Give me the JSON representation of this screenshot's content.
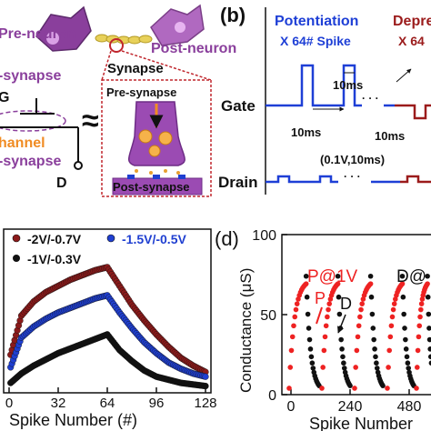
{
  "panel_a": {
    "pre_neuron": "Pre-neuron",
    "post_neuron": "Post-neuron",
    "synapse": "Synapse",
    "pre_synapse_side": "-synapse",
    "gate_label": "G",
    "channel_label": "hannel",
    "channel_synapse": "-synapse",
    "approx": "≈",
    "drain_label": "D",
    "pre_synapse": "Pre-synapse",
    "post_synapse": "Post-synapse"
  },
  "panel_b": {
    "label": "(b)",
    "potentiation": "Potentiation",
    "potentiation_count": "X 64# Spike",
    "depression": "Depre",
    "depression_count": "X 64",
    "gate": "Gate",
    "drain": "Drain",
    "width_top": "10ms",
    "gap_bottom": "10ms",
    "depress_width": "10ms",
    "drain_pulse": "(0.1V,10ms)",
    "dots": "· · ·",
    "potentiation_color": "#1e3fd6",
    "depression_color": "#9b1b1b"
  },
  "colors": {
    "pre_neuron": "#8a3f9c",
    "post_neuron": "#b069c0",
    "channel": "#f08c24",
    "synapse_red": "#c0262d",
    "series_red": "#8b1a1a",
    "series_blue": "#1f3fd1",
    "series_black": "#111111",
    "d_red": "#ee2222"
  },
  "chart_data": [
    {
      "type": "scatter",
      "xlabel": "Spike Number (#)",
      "ylabel": "",
      "xlim": [
        0,
        128
      ],
      "x_ticks": [
        "0",
        "32",
        "64",
        "96",
        "128"
      ],
      "legend_placement": "top-left",
      "series": [
        {
          "name": "-2V/-0.7V",
          "x": [
            1,
            8,
            16,
            24,
            32,
            40,
            48,
            56,
            64,
            72,
            80,
            88,
            96,
            104,
            112,
            120,
            128
          ],
          "values": [
            22,
            47,
            56,
            62,
            66,
            70,
            73,
            76,
            78,
            66,
            54,
            44,
            35,
            27,
            20,
            15,
            11
          ]
        },
        {
          "name": "-1.5V/-0.5V",
          "x": [
            1,
            8,
            16,
            24,
            32,
            40,
            48,
            56,
            64,
            72,
            80,
            88,
            96,
            104,
            112,
            120,
            128
          ],
          "values": [
            14,
            33,
            40,
            45,
            49,
            52,
            55,
            58,
            60,
            49,
            39,
            30,
            23,
            17,
            13,
            10,
            8
          ]
        },
        {
          "name": "-1V/-0.3V",
          "x": [
            1,
            8,
            16,
            24,
            32,
            40,
            48,
            56,
            64,
            72,
            80,
            88,
            96,
            104,
            112,
            120,
            128
          ],
          "values": [
            4,
            10,
            15,
            19,
            23,
            26,
            29,
            32,
            35,
            25,
            18,
            12,
            8,
            6,
            4,
            3,
            2
          ]
        }
      ]
    },
    {
      "type": "scatter",
      "label": "(d)",
      "xlabel": "Spike Number",
      "ylabel": "Conductance (μS)",
      "ylim": [
        0,
        100
      ],
      "y_ticks": [
        "0",
        "50",
        "100"
      ],
      "x_ticks": [
        "0",
        "240",
        "480"
      ],
      "annotations": [
        "P@1V",
        "P",
        "D",
        "D@"
      ],
      "series": [
        {
          "name": "P",
          "x": [],
          "values": []
        },
        {
          "name": "D",
          "x": [],
          "values": []
        }
      ]
    }
  ]
}
